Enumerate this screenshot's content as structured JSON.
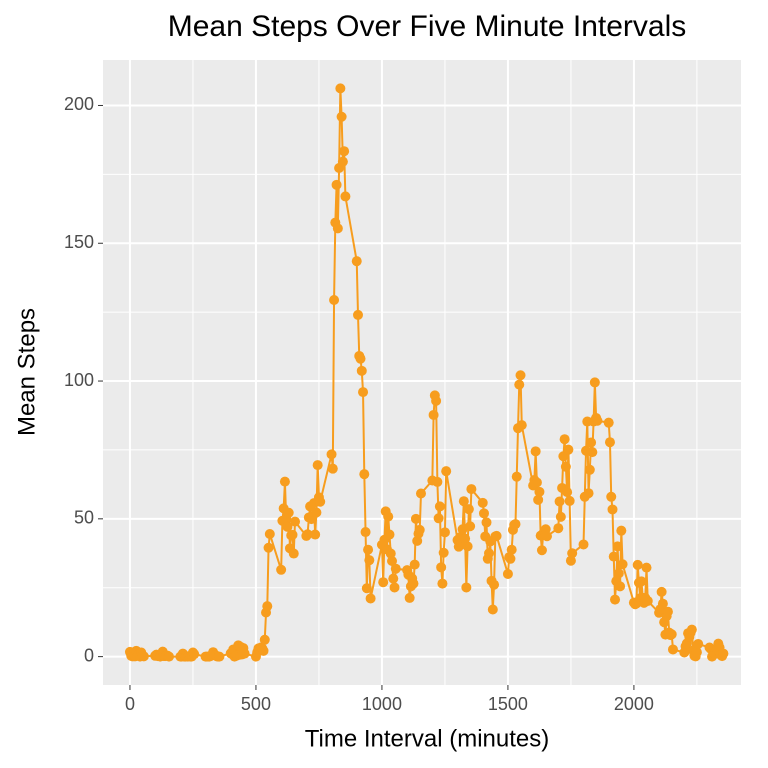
{
  "chart_data": {
    "type": "line",
    "title": "Mean Steps Over Five Minute Intervals",
    "x_label": "Time Interval (minutes)",
    "y_label": "Mean Steps",
    "x": [
      0,
      5,
      10,
      15,
      20,
      25,
      30,
      35,
      40,
      45,
      50,
      55,
      100,
      105,
      110,
      115,
      120,
      125,
      130,
      135,
      140,
      145,
      150,
      155,
      200,
      205,
      210,
      215,
      220,
      225,
      230,
      235,
      240,
      245,
      250,
      255,
      300,
      305,
      310,
      315,
      320,
      325,
      330,
      335,
      340,
      345,
      350,
      355,
      400,
      405,
      410,
      415,
      420,
      425,
      430,
      435,
      440,
      445,
      450,
      455,
      500,
      505,
      510,
      515,
      520,
      525,
      530,
      535,
      540,
      545,
      550,
      555,
      600,
      605,
      610,
      615,
      620,
      625,
      630,
      635,
      640,
      645,
      650,
      655,
      700,
      705,
      710,
      715,
      720,
      725,
      730,
      735,
      740,
      745,
      750,
      755,
      800,
      805,
      810,
      815,
      820,
      825,
      830,
      835,
      840,
      845,
      850,
      855,
      900,
      905,
      910,
      915,
      920,
      925,
      930,
      935,
      940,
      945,
      950,
      955,
      1000,
      1005,
      1010,
      1015,
      1020,
      1025,
      1030,
      1035,
      1040,
      1045,
      1050,
      1055,
      1100,
      1105,
      1110,
      1115,
      1120,
      1125,
      1130,
      1135,
      1140,
      1145,
      1150,
      1155,
      1200,
      1205,
      1210,
      1215,
      1220,
      1225,
      1230,
      1235,
      1240,
      1245,
      1250,
      1255,
      1300,
      1305,
      1310,
      1315,
      1320,
      1325,
      1330,
      1335,
      1340,
      1345,
      1350,
      1355,
      1400,
      1405,
      1410,
      1415,
      1420,
      1425,
      1430,
      1435,
      1440,
      1445,
      1450,
      1455,
      1500,
      1505,
      1510,
      1515,
      1520,
      1525,
      1530,
      1535,
      1540,
      1545,
      1550,
      1555,
      1600,
      1605,
      1610,
      1615,
      1620,
      1625,
      1630,
      1635,
      1640,
      1645,
      1650,
      1655,
      1700,
      1705,
      1710,
      1715,
      1720,
      1725,
      1730,
      1735,
      1740,
      1745,
      1750,
      1755,
      1800,
      1805,
      1810,
      1815,
      1820,
      1825,
      1830,
      1835,
      1840,
      1845,
      1850,
      1855,
      1900,
      1905,
      1910,
      1915,
      1920,
      1925,
      1930,
      1935,
      1940,
      1945,
      1950,
      1955,
      2000,
      2005,
      2010,
      2015,
      2020,
      2025,
      2030,
      2035,
      2040,
      2045,
      2050,
      2055,
      2100,
      2105,
      2110,
      2115,
      2120,
      2125,
      2130,
      2135,
      2140,
      2145,
      2150,
      2155,
      2200,
      2205,
      2210,
      2215,
      2220,
      2225,
      2230,
      2235,
      2240,
      2245,
      2250,
      2255,
      2300,
      2305,
      2310,
      2315,
      2320,
      2325,
      2330,
      2335,
      2340,
      2345,
      2350,
      2355
    ],
    "series": [
      {
        "name": "Mean Steps",
        "color": "#f79d1e",
        "values": [
          1.7,
          0.3,
          0.1,
          0.2,
          0.1,
          2.1,
          0.5,
          0.9,
          0,
          1.5,
          0.3,
          0.1,
          0.3,
          0.7,
          0.2,
          0.3,
          0,
          1.1,
          1.8,
          0.2,
          0.2,
          0.4,
          0.3,
          0,
          0,
          0,
          1.1,
          0,
          0,
          0.1,
          0,
          0.2,
          0,
          0,
          1.5,
          0.9,
          0,
          0,
          0,
          0,
          0.2,
          0.6,
          1.6,
          0.6,
          0.5,
          0.1,
          0,
          0,
          1.2,
          0.9,
          2.6,
          0,
          0.3,
          0.4,
          4.1,
          0.7,
          3.5,
          0.8,
          3.1,
          1.1,
          0,
          1.6,
          3,
          2.2,
          3.3,
          3,
          2.1,
          6.1,
          16,
          18.3,
          39.5,
          44.5,
          31.5,
          49.3,
          53.8,
          63.5,
          50,
          47.1,
          52.2,
          39.3,
          44,
          44.2,
          37.4,
          49,
          43.8,
          44.4,
          50.5,
          54.5,
          49.9,
          51,
          55.7,
          44.3,
          52.3,
          69.5,
          57.8,
          56.2,
          73.4,
          68.2,
          129.4,
          157.5,
          171.2,
          155.4,
          177.3,
          206.2,
          195.9,
          179.6,
          183.4,
          167,
          143.5,
          124,
          109.1,
          108.1,
          103.7,
          96,
          66.2,
          45.2,
          24.8,
          38.8,
          35,
          21.1,
          40.6,
          27,
          42.4,
          52.7,
          38.9,
          50.8,
          44.3,
          37.4,
          34.7,
          28.3,
          25.1,
          31.9,
          31.4,
          29.7,
          21.3,
          25.5,
          28.4,
          26.5,
          33.4,
          50,
          42,
          44.6,
          46,
          59.2,
          63.9,
          87.7,
          94.8,
          92.8,
          63.4,
          50.2,
          54.5,
          32.4,
          26.5,
          37.7,
          45.1,
          67.3,
          42.3,
          39.9,
          43.3,
          41,
          46.2,
          56.4,
          42.8,
          25.1,
          40,
          53.5,
          47.3,
          60.8,
          55.8,
          52,
          43.6,
          48.7,
          35.5,
          37.5,
          41.8,
          27.5,
          17.1,
          26.1,
          43.6,
          43.8,
          30,
          36.1,
          35.5,
          38.8,
          46,
          47.8,
          48.1,
          65.3,
          82.9,
          98.7,
          102.1,
          84,
          62.1,
          64.1,
          74.5,
          63.2,
          56.9,
          59.8,
          43.9,
          38.6,
          44.7,
          45.5,
          46.2,
          43.7,
          46.6,
          56.3,
          50.7,
          61.2,
          72.7,
          78.9,
          68.9,
          59.7,
          75.1,
          56.5,
          34.8,
          37.5,
          40.7,
          58,
          74.7,
          85.3,
          59.3,
          67.8,
          77.7,
          74.2,
          85.3,
          99.5,
          86.6,
          85.6,
          84.9,
          77.8,
          58,
          53.4,
          36.3,
          20.7,
          27.4,
          40,
          30.2,
          25.5,
          45.7,
          33.5,
          19.6,
          19,
          19.3,
          33.3,
          26.8,
          21.2,
          27.3,
          21.3,
          19.5,
          21.3,
          32.3,
          20.2,
          15.9,
          17.2,
          23.5,
          19.2,
          12.5,
          8,
          14.7,
          16.3,
          8.7,
          7.8,
          8.1,
          2.6,
          1.5,
          3.7,
          4.8,
          8.5,
          7.1,
          8.7,
          9.8,
          2.2,
          0.3,
          0.1,
          1.6,
          4.6,
          3.3,
          2.8,
          0,
          0.8,
          1,
          1.6,
          2.6,
          4.7,
          3.3,
          0.6,
          0.2,
          1.1
        ]
      }
    ],
    "xlim": [
      -107,
      2425
    ],
    "xticks": [
      0,
      500,
      1000,
      1500,
      2000
    ],
    "ylim": [
      -10.3,
      216.5
    ],
    "yticks": [
      0,
      50,
      100,
      150,
      200
    ],
    "grid": true
  }
}
